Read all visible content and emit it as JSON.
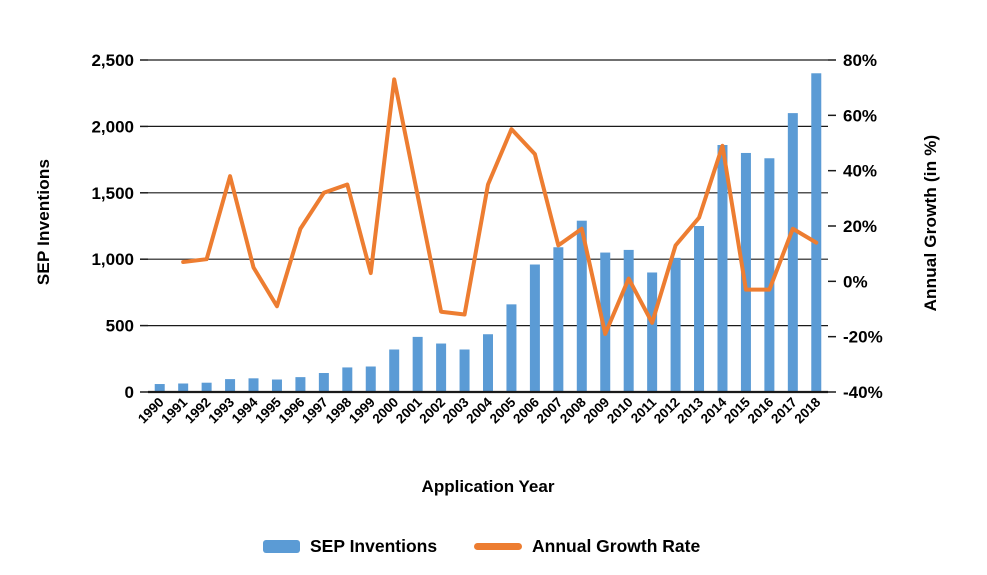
{
  "chart_data": {
    "type": "bar",
    "subtype": "combo-bar-line",
    "title": "",
    "categories": [
      "1990",
      "1991",
      "1992",
      "1993",
      "1994",
      "1995",
      "1996",
      "1997",
      "1998",
      "1999",
      "2000",
      "2001",
      "2002",
      "2003",
      "2004",
      "2005",
      "2006",
      "2007",
      "2008",
      "2009",
      "2010",
      "2011",
      "2012",
      "2013",
      "2014",
      "2015",
      "2016",
      "2017",
      "2018"
    ],
    "series": [
      {
        "name": "SEP Inventions",
        "type": "bar",
        "axis": "left",
        "color": "#5B9BD5",
        "values": [
          60,
          64,
          70,
          97,
          103,
          94,
          112,
          143,
          185,
          192,
          320,
          415,
          365,
          320,
          435,
          660,
          960,
          1090,
          1290,
          1050,
          1070,
          900,
          1010,
          1250,
          1860,
          1800,
          1760,
          2100,
          2400
        ]
      },
      {
        "name": "Annual Growth Rate",
        "type": "line",
        "axis": "right",
        "color": "#ED7D31",
        "values": [
          null,
          7,
          8,
          38,
          5,
          -9,
          19,
          32,
          35,
          3,
          73,
          31,
          -11,
          -12,
          35,
          55,
          46,
          13,
          19,
          -19,
          1,
          -15,
          13,
          23,
          49,
          -3,
          -3,
          19,
          14
        ]
      }
    ],
    "left_axis": {
      "title": "SEP Inventions",
      "min": 0,
      "max": 2500,
      "tick_labels": [
        "0",
        "500",
        "1,000",
        "1,500",
        "2,000",
        "2,500"
      ]
    },
    "right_axis": {
      "title": "Annual Growth (in %)",
      "min": -40,
      "max": 80,
      "tick_labels": [
        "-40%",
        "-20%",
        "0%",
        "20%",
        "40%",
        "60%",
        "80%"
      ]
    },
    "x_axis": {
      "title": "Application Year"
    },
    "legend": {
      "position": "bottom",
      "items": [
        {
          "label": "SEP Inventions",
          "color": "#5B9BD5",
          "marker": "bar"
        },
        {
          "label": "Annual Growth Rate",
          "color": "#ED7D31",
          "marker": "line"
        }
      ]
    },
    "grid": true,
    "gridline_color": "#1a1a1a",
    "background": "#FFFFFF"
  }
}
